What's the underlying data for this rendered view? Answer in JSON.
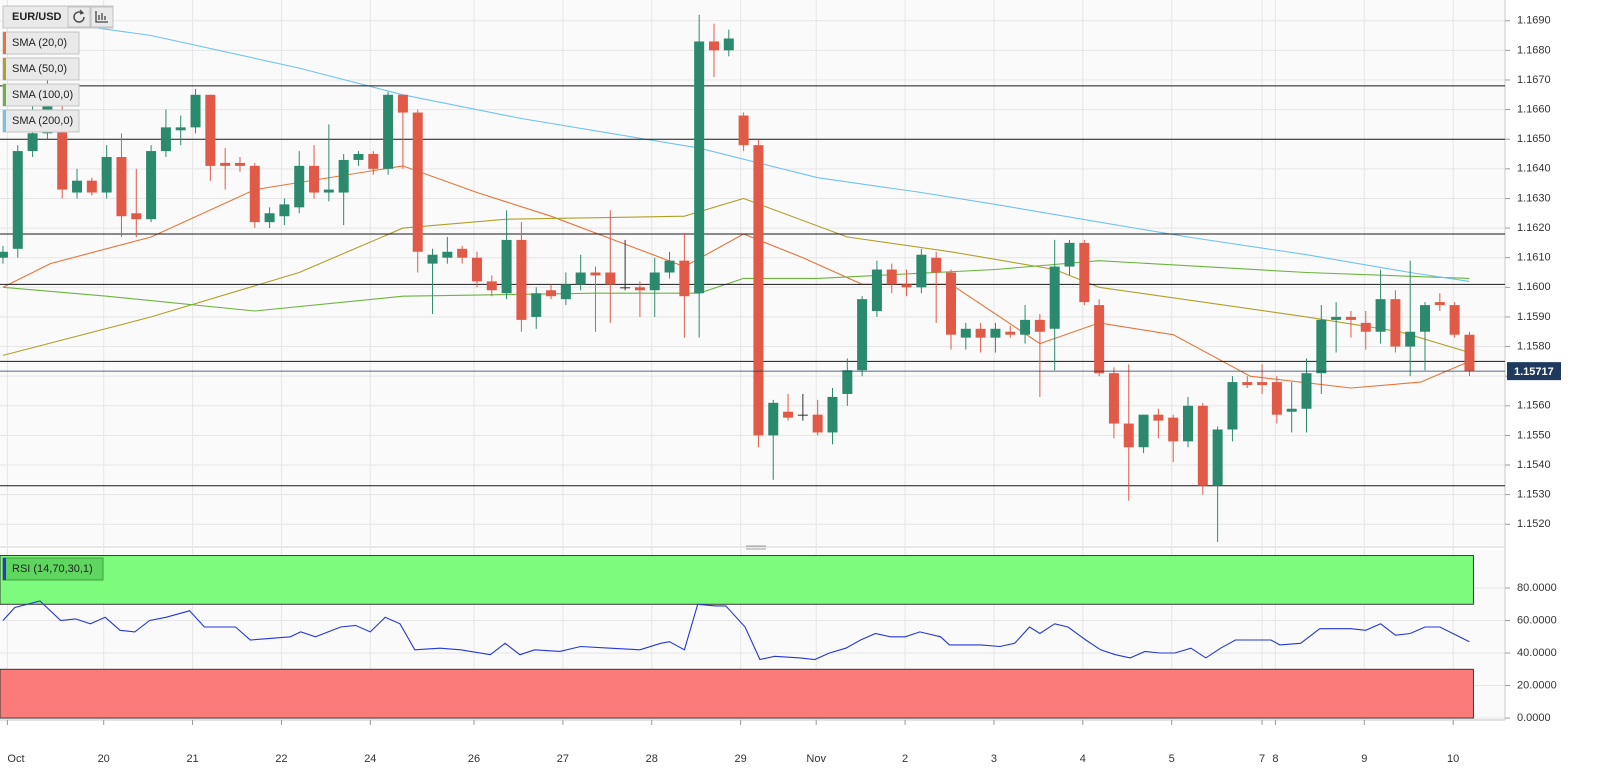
{
  "chart_data": {
    "type": "candlestick",
    "symbol": "EUR/USD",
    "up_color": "#2b8a6e",
    "down_color": "#e05a47",
    "doji_color": "#333333",
    "candles": [
      [
        1.161,
        1.1614,
        1.1608,
        1.1612
      ],
      [
        1.1613,
        1.1648,
        1.161,
        1.1646
      ],
      [
        1.1646,
        1.1668,
        1.1644,
        1.1652
      ],
      [
        1.1652,
        1.167,
        1.165,
        1.1662
      ],
      [
        1.1656,
        1.1662,
        1.163,
        1.1633
      ],
      [
        1.1632,
        1.164,
        1.163,
        1.1636
      ],
      [
        1.1636,
        1.1637,
        1.1631,
        1.1632
      ],
      [
        1.1632,
        1.1648,
        1.163,
        1.1644
      ],
      [
        1.1644,
        1.1652,
        1.1617,
        1.1624
      ],
      [
        1.1625,
        1.164,
        1.1617,
        1.1623
      ],
      [
        1.1623,
        1.1648,
        1.1622,
        1.1646
      ],
      [
        1.1646,
        1.166,
        1.1644,
        1.1654
      ],
      [
        1.1653,
        1.1658,
        1.1648,
        1.1654
      ],
      [
        1.1654,
        1.1667,
        1.1652,
        1.1665
      ],
      [
        1.1665,
        1.1665,
        1.1636,
        1.1641
      ],
      [
        1.1642,
        1.1647,
        1.1633,
        1.1641
      ],
      [
        1.1642,
        1.1644,
        1.1639,
        1.1641
      ],
      [
        1.1641,
        1.1642,
        1.162,
        1.1622
      ],
      [
        1.1622,
        1.1627,
        1.162,
        1.1625
      ],
      [
        1.1624,
        1.163,
        1.1621,
        1.1628
      ],
      [
        1.1627,
        1.1646,
        1.1625,
        1.1641
      ],
      [
        1.1641,
        1.1648,
        1.163,
        1.1632
      ],
      [
        1.1632,
        1.1655,
        1.1629,
        1.1633
      ],
      [
        1.1632,
        1.1645,
        1.1621,
        1.1643
      ],
      [
        1.1643,
        1.1646,
        1.1641,
        1.1645
      ],
      [
        1.1645,
        1.1646,
        1.1638,
        1.164
      ],
      [
        1.164,
        1.1666,
        1.1638,
        1.1665
      ],
      [
        1.1665,
        1.1665,
        1.164,
        1.1659
      ],
      [
        1.1659,
        1.166,
        1.1605,
        1.1612
      ],
      [
        1.1608,
        1.1613,
        1.1591,
        1.1611
      ],
      [
        1.161,
        1.1617,
        1.1608,
        1.1612
      ],
      [
        1.1613,
        1.1614,
        1.1608,
        1.161
      ],
      [
        1.161,
        1.1612,
        1.16,
        1.1602
      ],
      [
        1.1602,
        1.1604,
        1.1597,
        1.1599
      ],
      [
        1.1598,
        1.1626,
        1.1596,
        1.1616
      ],
      [
        1.1616,
        1.1622,
        1.1585,
        1.1589
      ],
      [
        1.159,
        1.16,
        1.1586,
        1.1598
      ],
      [
        1.1599,
        1.1601,
        1.1596,
        1.1597
      ],
      [
        1.1596,
        1.1605,
        1.1594,
        1.1601
      ],
      [
        1.1601,
        1.1611,
        1.1599,
        1.1605
      ],
      [
        1.1605,
        1.1607,
        1.1585,
        1.1604
      ],
      [
        1.1605,
        1.1626,
        1.1588,
        1.1601
      ],
      [
        1.16,
        1.1616,
        1.1599,
        1.16
      ],
      [
        1.16,
        1.1602,
        1.159,
        1.1599
      ],
      [
        1.1599,
        1.161,
        1.159,
        1.1605
      ],
      [
        1.1605,
        1.1612,
        1.1603,
        1.1609
      ],
      [
        1.1609,
        1.1618,
        1.1583,
        1.1597
      ],
      [
        1.1598,
        1.1692,
        1.1583,
        1.1683
      ],
      [
        1.1683,
        1.1689,
        1.1671,
        1.168
      ],
      [
        1.168,
        1.1687,
        1.1678,
        1.1684
      ],
      [
        1.1658,
        1.1659,
        1.1646,
        1.1648
      ],
      [
        1.1648,
        1.165,
        1.1546,
        1.155
      ],
      [
        1.155,
        1.1562,
        1.1535,
        1.1561
      ],
      [
        1.1558,
        1.1564,
        1.1555,
        1.1556
      ],
      [
        1.1557,
        1.1564,
        1.1555,
        1.1557
      ],
      [
        1.1557,
        1.1562,
        1.155,
        1.1551
      ],
      [
        1.1551,
        1.1566,
        1.1547,
        1.1563
      ],
      [
        1.1564,
        1.1576,
        1.156,
        1.1572
      ],
      [
        1.1572,
        1.1597,
        1.157,
        1.1596
      ],
      [
        1.1592,
        1.1609,
        1.159,
        1.1606
      ],
      [
        1.1606,
        1.1608,
        1.1598,
        1.1601
      ],
      [
        1.1601,
        1.1606,
        1.1597,
        1.16
      ],
      [
        1.16,
        1.1613,
        1.1598,
        1.1611
      ],
      [
        1.161,
        1.1612,
        1.1588,
        1.1605
      ],
      [
        1.1605,
        1.1606,
        1.1579,
        1.1584
      ],
      [
        1.1583,
        1.1588,
        1.1579,
        1.1586
      ],
      [
        1.1586,
        1.1588,
        1.1578,
        1.1583
      ],
      [
        1.1583,
        1.1588,
        1.1578,
        1.1586
      ],
      [
        1.1585,
        1.1587,
        1.1583,
        1.1584
      ],
      [
        1.1584,
        1.1594,
        1.1581,
        1.1589
      ],
      [
        1.1589,
        1.1591,
        1.1563,
        1.1585
      ],
      [
        1.1586,
        1.1616,
        1.1572,
        1.1607
      ],
      [
        1.1607,
        1.1616,
        1.1604,
        1.1615
      ],
      [
        1.1615,
        1.1616,
        1.1594,
        1.1595
      ],
      [
        1.1594,
        1.1596,
        1.157,
        1.1571
      ],
      [
        1.1571,
        1.1573,
        1.1549,
        1.1554
      ],
      [
        1.1554,
        1.1574,
        1.1528,
        1.1546
      ],
      [
        1.1546,
        1.1557,
        1.1544,
        1.1557
      ],
      [
        1.1557,
        1.1559,
        1.1549,
        1.1555
      ],
      [
        1.1556,
        1.1557,
        1.1541,
        1.1548
      ],
      [
        1.1548,
        1.1563,
        1.1546,
        1.156
      ],
      [
        1.156,
        1.1561,
        1.153,
        1.1533
      ],
      [
        1.1533,
        1.1553,
        1.1514,
        1.1552
      ],
      [
        1.1552,
        1.157,
        1.1548,
        1.1568
      ],
      [
        1.1568,
        1.157,
        1.1566,
        1.1567
      ],
      [
        1.1568,
        1.1574,
        1.1564,
        1.1567
      ],
      [
        1.1568,
        1.157,
        1.1554,
        1.1557
      ],
      [
        1.1558,
        1.1568,
        1.1551,
        1.1559
      ],
      [
        1.1559,
        1.1576,
        1.1551,
        1.1571
      ],
      [
        1.1571,
        1.1594,
        1.1564,
        1.1589
      ],
      [
        1.1589,
        1.1595,
        1.1578,
        1.159
      ],
      [
        1.159,
        1.1592,
        1.1583,
        1.1589
      ],
      [
        1.1588,
        1.1592,
        1.1579,
        1.1585
      ],
      [
        1.1585,
        1.1606,
        1.1581,
        1.1596
      ],
      [
        1.1596,
        1.1599,
        1.1578,
        1.158
      ],
      [
        1.158,
        1.1609,
        1.157,
        1.1585
      ],
      [
        1.1585,
        1.1595,
        1.1572,
        1.1594
      ],
      [
        1.1595,
        1.1598,
        1.1592,
        1.1594
      ],
      [
        1.1594,
        1.1595,
        1.1583,
        1.1584
      ],
      [
        1.1584,
        1.1585,
        1.157,
        1.15717
      ]
    ],
    "xlim": [
      -0.2,
      101.4
    ],
    "xticks": [
      {
        "value": 0.3,
        "label": "Oct"
      },
      {
        "value": 6.8,
        "label": "20"
      },
      {
        "value": 12.8,
        "label": "21"
      },
      {
        "value": 18.8,
        "label": "22"
      },
      {
        "value": 24.8,
        "label": "24"
      },
      {
        "value": 31.8,
        "label": "26"
      },
      {
        "value": 37.8,
        "label": "27"
      },
      {
        "value": 43.8,
        "label": "28"
      },
      {
        "value": 49.8,
        "label": "29"
      },
      {
        "value": 54.9,
        "label": "Nov"
      },
      {
        "value": 60.9,
        "label": "2"
      },
      {
        "value": 66.9,
        "label": "3"
      },
      {
        "value": 72.9,
        "label": "4"
      },
      {
        "value": 78.9,
        "label": "5"
      },
      {
        "value": 85,
        "label": "7"
      },
      {
        "value": 85.9,
        "label": "8"
      },
      {
        "value": 91.9,
        "label": "9"
      },
      {
        "value": 97.9,
        "label": "10"
      }
    ],
    "ylim": [
      1.1513,
      1.1697
    ],
    "yticks": [
      {
        "value": 1.152,
        "label": "1.1520"
      },
      {
        "value": 1.153,
        "label": "1.1530"
      },
      {
        "value": 1.154,
        "label": "1.1540"
      },
      {
        "value": 1.155,
        "label": "1.1550"
      },
      {
        "value": 1.156,
        "label": "1.1560"
      },
      {
        "value": 1.157,
        "label": "1.1570"
      },
      {
        "value": 1.158,
        "label": "1.1580"
      },
      {
        "value": 1.159,
        "label": "1.1590"
      },
      {
        "value": 1.16,
        "label": "1.1600"
      },
      {
        "value": 1.161,
        "label": "1.1610"
      },
      {
        "value": 1.162,
        "label": "1.1620"
      },
      {
        "value": 1.163,
        "label": "1.1630"
      },
      {
        "value": 1.164,
        "label": "1.1640"
      },
      {
        "value": 1.165,
        "label": "1.1650"
      },
      {
        "value": 1.166,
        "label": "1.1660"
      },
      {
        "value": 1.167,
        "label": "1.1670"
      },
      {
        "value": 1.168,
        "label": "1.1680"
      },
      {
        "value": 1.169,
        "label": "1.1690"
      }
    ],
    "grid": true,
    "levels": [
      1.1668,
      1.165,
      1.1618,
      1.1601,
      1.1575,
      1.1533
    ],
    "last_price": 1.15717,
    "sma": [
      {
        "name": "SMA (20,0)",
        "color": "#e8743b",
        "x": [
          0,
          3.2,
          10,
          17,
          27,
          32,
          37,
          46,
          50,
          54,
          58,
          64,
          70,
          74,
          79,
          84.2,
          91,
          95.7,
          99
        ],
        "values": [
          1.16,
          1.1608,
          1.1617,
          1.1633,
          1.1641,
          1.1632,
          1.1624,
          1.1607,
          1.1618,
          1.161,
          1.1601,
          1.1601,
          1.1581,
          1.1588,
          1.1584,
          1.157,
          1.1566,
          1.1568,
          1.1575
        ]
      },
      {
        "name": "SMA (50,0)",
        "color": "#b0a02a",
        "x": [
          0,
          10,
          20,
          27,
          34,
          46,
          50,
          57,
          64,
          71,
          74,
          81,
          88,
          94.3,
          99
        ],
        "values": [
          1.1577,
          1.159,
          1.1605,
          1.162,
          1.1623,
          1.1624,
          1.163,
          1.1617,
          1.1612,
          1.1606,
          1.16,
          1.1595,
          1.159,
          1.1585,
          1.1578
        ]
      },
      {
        "name": "SMA (100,0)",
        "color": "#6cb33f",
        "x": [
          0,
          7,
          17,
          27,
          40,
          47,
          50,
          55,
          67,
          74,
          88,
          99
        ],
        "values": [
          1.16,
          1.1597,
          1.1592,
          1.1597,
          1.1598,
          1.1598,
          1.1603,
          1.1603,
          1.1606,
          1.1609,
          1.1605,
          1.1603
        ]
      },
      {
        "name": "SMA (200,0)",
        "color": "#6ec3ef",
        "x": [
          0,
          10,
          20,
          27,
          35,
          47,
          55,
          62,
          67,
          74,
          80,
          88,
          95,
          99
        ],
        "values": [
          1.1692,
          1.1685,
          1.1674,
          1.1665,
          1.1657,
          1.1647,
          1.1637,
          1.1632,
          1.1628,
          1.1622,
          1.1617,
          1.1611,
          1.1605,
          1.1602
        ]
      }
    ],
    "rsi": {
      "name": "RSI (14,70,30,1)",
      "color": "#2636d8",
      "upper": 70,
      "lower": 30,
      "range": [
        0,
        100
      ],
      "ylim": [
        -1.2,
        103.4
      ],
      "yticks": [
        {
          "value": 0,
          "label": "0.0000"
        },
        {
          "value": 20,
          "label": "20.0000"
        },
        {
          "value": 40,
          "label": "40.0000"
        },
        {
          "value": 60,
          "label": "60.0000"
        },
        {
          "value": 80,
          "label": "80.0000"
        }
      ],
      "x": [
        0,
        0.8,
        2.5,
        3.9,
        4.9,
        5.9,
        6.9,
        7.9,
        8.9,
        9.9,
        11,
        12.6,
        13.6,
        15.7,
        16.7,
        19.4,
        20.1,
        21.1,
        22.8,
        23.8,
        24.8,
        25.8,
        26.8,
        27.8,
        29.5,
        30.9,
        32.9,
        33.9,
        34.9,
        35.9,
        37.6,
        39,
        41,
        43,
        44.4,
        45,
        46,
        46.9,
        48.1,
        48.8,
        50.1,
        51.1,
        52.1,
        53.8,
        54.8,
        55.8,
        56.9,
        57.9,
        58.9,
        59.9,
        60.9,
        61.9,
        63.3,
        63.9,
        66,
        67.3,
        68.3,
        69.3,
        70,
        71,
        71.9,
        73.1,
        74.1,
        75.1,
        76.1,
        77.1,
        78.1,
        79.1,
        80.2,
        81.2,
        82.2,
        83.2,
        85.6,
        86.2,
        87.6,
        88.9,
        91,
        92,
        93,
        94,
        95,
        96,
        97,
        99
      ],
      "values": [
        60,
        68,
        72,
        60,
        61,
        58,
        62,
        54,
        53,
        60,
        62,
        66,
        56,
        56,
        48,
        50,
        53,
        50,
        56,
        57,
        53,
        62,
        58,
        42,
        43,
        42,
        39,
        46,
        39,
        42,
        41,
        44,
        43,
        42,
        46,
        47,
        42,
        70,
        69,
        69,
        56,
        36,
        38,
        37,
        36,
        40,
        43,
        48,
        52,
        50,
        50,
        53,
        50,
        45,
        45,
        44,
        46,
        56,
        52,
        58,
        56,
        48,
        42,
        39,
        37,
        41,
        40,
        40,
        43,
        37,
        43,
        48,
        48,
        45,
        46,
        55,
        55,
        54,
        58,
        51,
        52,
        56,
        56,
        47
      ]
    }
  }
}
